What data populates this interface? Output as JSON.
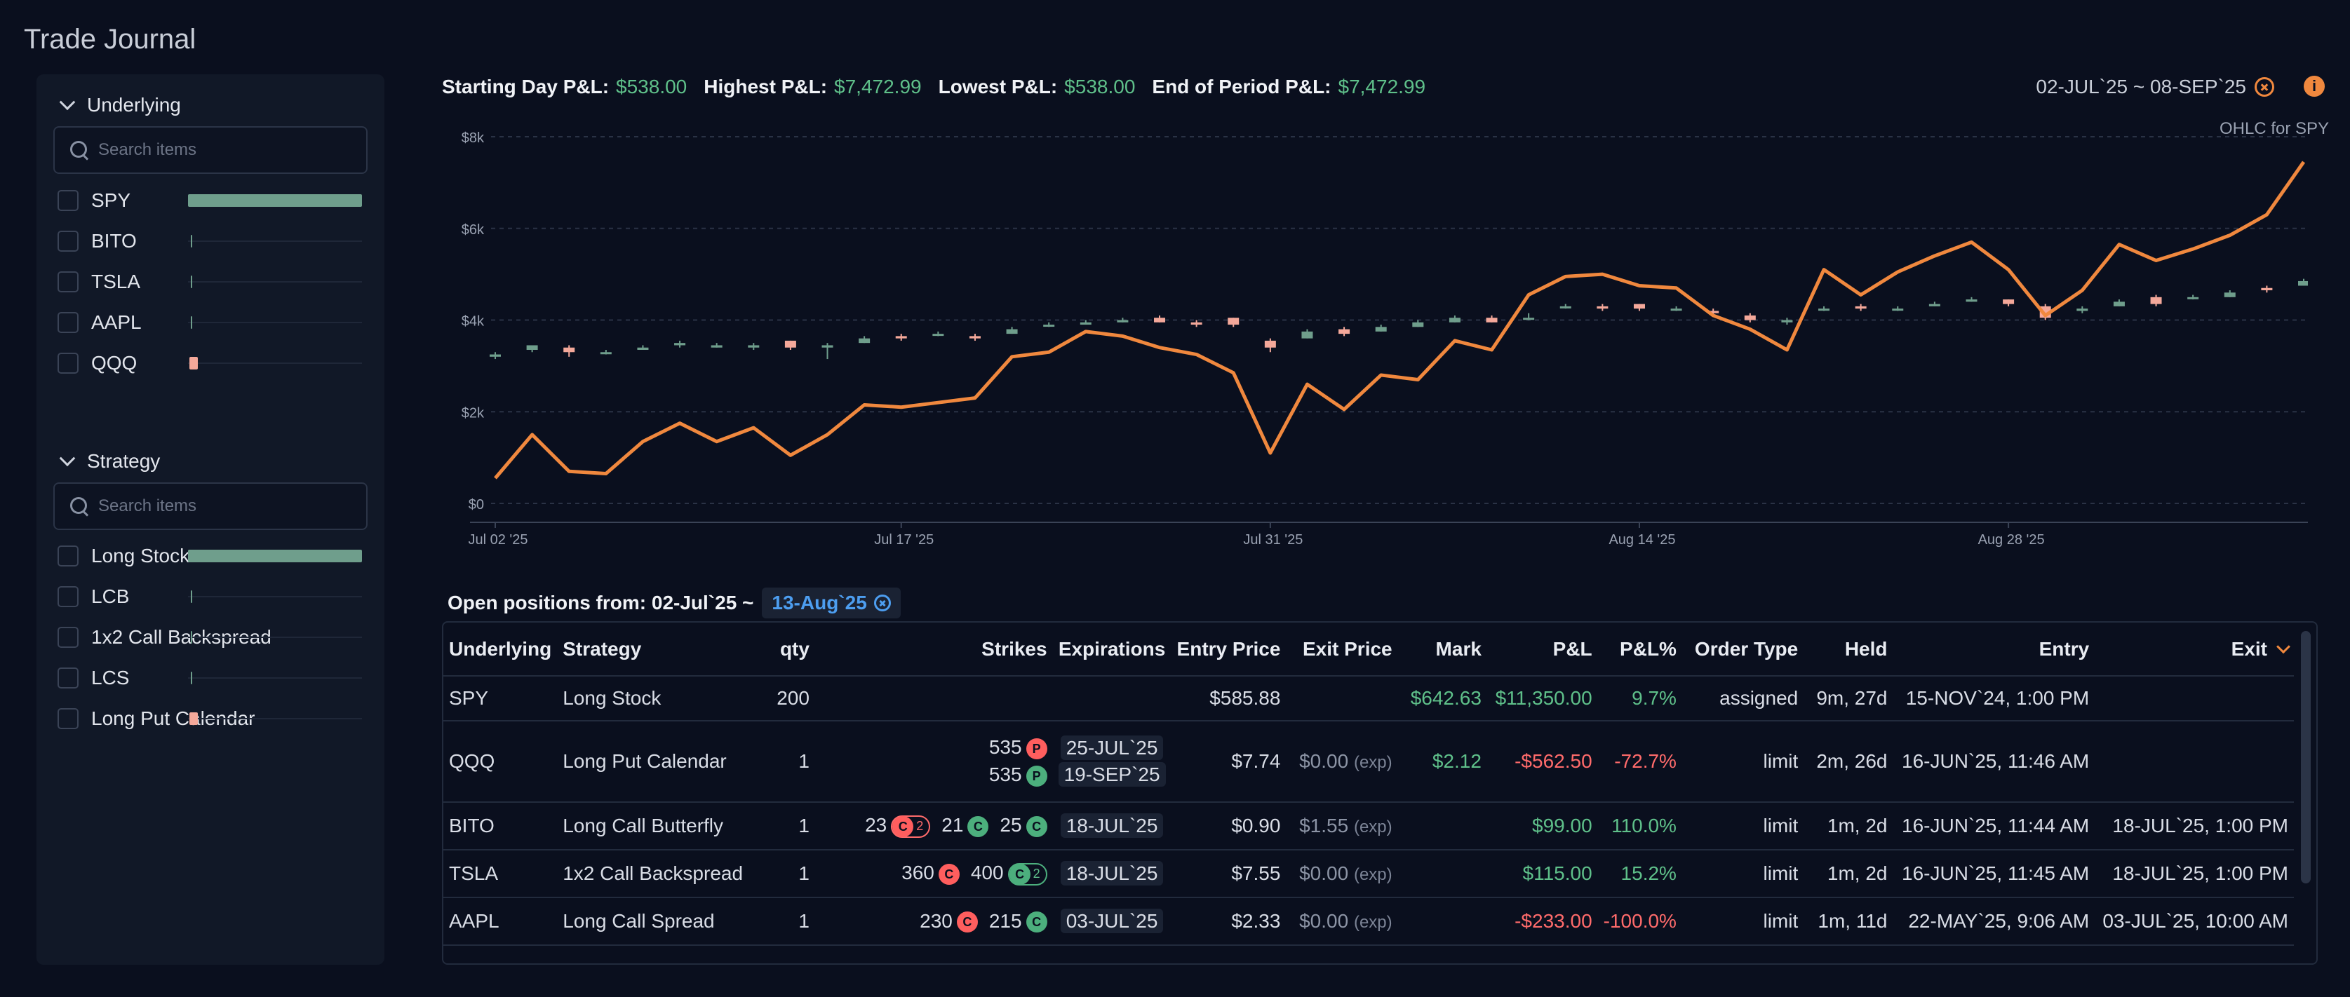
{
  "app": {
    "title": "Trade Journal"
  },
  "sidebar": {
    "underlying": {
      "title": "Underlying",
      "search_placeholder": "Search items",
      "items": [
        {
          "label": "SPY",
          "bar": {
            "type": "gain",
            "fraction": 1.0
          }
        },
        {
          "label": "BITO",
          "bar": {
            "type": "tick",
            "fraction": 0.0
          }
        },
        {
          "label": "TSLA",
          "bar": {
            "type": "tick",
            "fraction": 0.0
          }
        },
        {
          "label": "AAPL",
          "bar": {
            "type": "tick",
            "fraction": 0.0
          }
        },
        {
          "label": "QQQ",
          "bar": {
            "type": "loss",
            "fraction": 0.05
          }
        }
      ]
    },
    "strategy": {
      "title": "Strategy",
      "search_placeholder": "Search items",
      "items": [
        {
          "label": "Long Stock",
          "bar": {
            "type": "gain",
            "fraction": 1.0
          }
        },
        {
          "label": "LCB",
          "bar": {
            "type": "tick",
            "fraction": 0.0
          }
        },
        {
          "label": "1x2 Call Backspread",
          "bar": {
            "type": "tick",
            "fraction": 0.0
          }
        },
        {
          "label": "LCS",
          "bar": {
            "type": "tick",
            "fraction": 0.0
          }
        },
        {
          "label": "Long Put Calendar",
          "bar": {
            "type": "loss",
            "fraction": 0.05
          }
        }
      ]
    }
  },
  "stats": {
    "starting_label": "Starting Day P&L:",
    "starting_value": "$538.00",
    "highest_label": "Highest P&L:",
    "highest_value": "$7,472.99",
    "lowest_label": "Lowest P&L:",
    "lowest_value": "$538.00",
    "end_label": "End of Period P&L:",
    "end_value": "$7,472.99",
    "date_range": "02-JUL`25 ~ 08-SEP`25"
  },
  "colors": {
    "accent": "#f0883e",
    "gain": "#5fc08a",
    "loss": "#ff6b6b",
    "up_candle": "#6f9e8c",
    "down_candle": "#f4a89a"
  },
  "chart_data": {
    "type": "line",
    "ohlc_label": "OHLC for SPY",
    "y_ticks": [
      "$0",
      "$2k",
      "$4k",
      "$6k",
      "$8k"
    ],
    "ylim": [
      0,
      8000
    ],
    "x_ticks": [
      {
        "label": "Jul 02 '25",
        "index": 0
      },
      {
        "label": "Jul 17 '25",
        "index": 11
      },
      {
        "label": "Jul 31 '25",
        "index": 21
      },
      {
        "label": "Aug 14 '25",
        "index": 31
      },
      {
        "label": "Aug 28 '25",
        "index": 41
      }
    ],
    "n_points": 50,
    "pnl_series": [
      550,
      1500,
      700,
      650,
      1350,
      1750,
      1350,
      1650,
      1050,
      1500,
      2150,
      2100,
      2200,
      2300,
      3200,
      3300,
      3750,
      3650,
      3400,
      3250,
      2850,
      1100,
      2600,
      2050,
      2800,
      2700,
      3550,
      3350,
      4550,
      4950,
      5000,
      4750,
      4700,
      4100,
      3800,
      3350,
      5100,
      4550,
      5050,
      5400,
      5700,
      5100,
      4100,
      4650,
      5650,
      5300,
      5550,
      5850,
      6300,
      7450
    ],
    "ohlc": [
      [
        3200,
        3250,
        3150,
        3300
      ],
      [
        3350,
        3450,
        3300,
        3400
      ],
      [
        3400,
        3300,
        3200,
        3450
      ],
      [
        3300,
        3300,
        3250,
        3350
      ],
      [
        3350,
        3400,
        3350,
        3450
      ],
      [
        3450,
        3500,
        3400,
        3550
      ],
      [
        3400,
        3450,
        3400,
        3500
      ],
      [
        3400,
        3450,
        3350,
        3500
      ],
      [
        3550,
        3400,
        3350,
        3550
      ],
      [
        3400,
        3450,
        3150,
        3500
      ],
      [
        3500,
        3600,
        3500,
        3650
      ],
      [
        3650,
        3600,
        3550,
        3700
      ],
      [
        3700,
        3700,
        3650,
        3750
      ],
      [
        3650,
        3600,
        3550,
        3700
      ],
      [
        3700,
        3800,
        3700,
        3850
      ],
      [
        3900,
        3900,
        3850,
        3950
      ],
      [
        3900,
        3950,
        3900,
        4000
      ],
      [
        3950,
        4000,
        3950,
        4050
      ],
      [
        4050,
        3950,
        3950,
        4100
      ],
      [
        3950,
        3900,
        3850,
        4000
      ],
      [
        4050,
        3900,
        3850,
        4050
      ],
      [
        3550,
        3400,
        3300,
        3600
      ],
      [
        3600,
        3750,
        3600,
        3800
      ],
      [
        3800,
        3700,
        3650,
        3850
      ],
      [
        3750,
        3850,
        3750,
        3900
      ],
      [
        3850,
        3950,
        3850,
        4000
      ],
      [
        3950,
        4050,
        3950,
        4100
      ],
      [
        4050,
        3950,
        3950,
        4100
      ],
      [
        4050,
        4050,
        4000,
        4150
      ],
      [
        4300,
        4300,
        4250,
        4350
      ],
      [
        4300,
        4250,
        4200,
        4350
      ],
      [
        4350,
        4250,
        4200,
        4350
      ],
      [
        4250,
        4250,
        4200,
        4300
      ],
      [
        4200,
        4150,
        4100,
        4250
      ],
      [
        4100,
        4000,
        3950,
        4150
      ],
      [
        3950,
        4000,
        3900,
        4050
      ],
      [
        4250,
        4250,
        4200,
        4300
      ],
      [
        4300,
        4250,
        4200,
        4350
      ],
      [
        4250,
        4250,
        4200,
        4300
      ],
      [
        4300,
        4350,
        4300,
        4400
      ],
      [
        4400,
        4450,
        4400,
        4500
      ],
      [
        4450,
        4350,
        4300,
        4450
      ],
      [
        4300,
        4050,
        4000,
        4350
      ],
      [
        4200,
        4250,
        4150,
        4300
      ],
      [
        4300,
        4400,
        4300,
        4450
      ],
      [
        4500,
        4350,
        4300,
        4550
      ],
      [
        4500,
        4500,
        4450,
        4550
      ],
      [
        4500,
        4600,
        4500,
        4650
      ],
      [
        4700,
        4650,
        4600,
        4750
      ],
      [
        4750,
        4850,
        4750,
        4900
      ]
    ]
  },
  "positions": {
    "title": "Open positions from: 02-Jul`25 ~",
    "date_chip": "13-Aug`25",
    "columns": [
      "Underlying",
      "Strategy",
      "qty",
      "Strikes",
      "Expirations",
      "Entry Price",
      "Exit Price",
      "Mark",
      "P&L",
      "P&L%",
      "Order Type",
      "Held",
      "Entry",
      "Exit"
    ],
    "exp_suffix": "(exp)",
    "rows": [
      {
        "underlying": "SPY",
        "strategy": "Long Stock",
        "qty": "200",
        "strikes": [],
        "expirations": [],
        "entry_price": "$585.88",
        "exit_price": "",
        "mark": "$642.63",
        "pnl": "$11,350.00",
        "pnl_pct": "9.7%",
        "order_type": "assigned",
        "held": "9m, 27d",
        "entry": "15-NOV`24, 1:00 PM",
        "exit": "",
        "sign": "pos"
      },
      {
        "underlying": "QQQ",
        "strategy": "Long Put Calendar",
        "qty": "1",
        "strikes": [
          {
            "v": "535",
            "b": "P",
            "k": "put"
          },
          {
            "v": "535",
            "b": "P",
            "k": "call"
          }
        ],
        "expirations": [
          "25-JUL`25",
          "19-SEP`25"
        ],
        "entry_price": "$7.74",
        "exit_price": "$0.00",
        "mark": "$2.12",
        "pnl": "-$562.50",
        "pnl_pct": "-72.7%",
        "order_type": "limit",
        "held": "2m, 26d",
        "entry": "16-JUN`25, 11:46 AM",
        "exit": "",
        "sign": "neg"
      },
      {
        "underlying": "BITO",
        "strategy": "Long Call Butterfly",
        "qty": "1",
        "strikes": [
          {
            "v": "23",
            "b": "C",
            "k": "red",
            "n": "2"
          },
          {
            "v": "21",
            "b": "C",
            "k": "call"
          },
          {
            "v": "25",
            "b": "C",
            "k": "call"
          }
        ],
        "expirations": [
          "18-JUL`25"
        ],
        "entry_price": "$0.90",
        "exit_price": "$1.55",
        "mark": "",
        "pnl": "$99.00",
        "pnl_pct": "110.0%",
        "order_type": "limit",
        "held": "1m, 2d",
        "entry": "16-JUN`25, 11:44 AM",
        "exit": "18-JUL`25, 1:00 PM",
        "sign": "pos"
      },
      {
        "underlying": "TSLA",
        "strategy": "1x2 Call Backspread",
        "qty": "1",
        "strikes": [
          {
            "v": "360",
            "b": "C",
            "k": "put"
          },
          {
            "v": "400",
            "b": "C",
            "k": "green",
            "n": "2"
          }
        ],
        "expirations": [
          "18-JUL`25"
        ],
        "entry_price": "$7.55",
        "exit_price": "$0.00",
        "mark": "",
        "pnl": "$115.00",
        "pnl_pct": "15.2%",
        "order_type": "limit",
        "held": "1m, 2d",
        "entry": "16-JUN`25, 11:45 AM",
        "exit": "18-JUL`25, 1:00 PM",
        "sign": "pos"
      },
      {
        "underlying": "AAPL",
        "strategy": "Long Call Spread",
        "qty": "1",
        "strikes": [
          {
            "v": "230",
            "b": "C",
            "k": "put"
          },
          {
            "v": "215",
            "b": "C",
            "k": "call"
          }
        ],
        "expirations": [
          "03-JUL`25"
        ],
        "entry_price": "$2.33",
        "exit_price": "$0.00",
        "mark": "",
        "pnl": "-$233.00",
        "pnl_pct": "-100.0%",
        "order_type": "limit",
        "held": "1m, 11d",
        "entry": "22-MAY`25, 9:06 AM",
        "exit": "03-JUL`25, 10:00 AM",
        "sign": "neg"
      }
    ]
  }
}
